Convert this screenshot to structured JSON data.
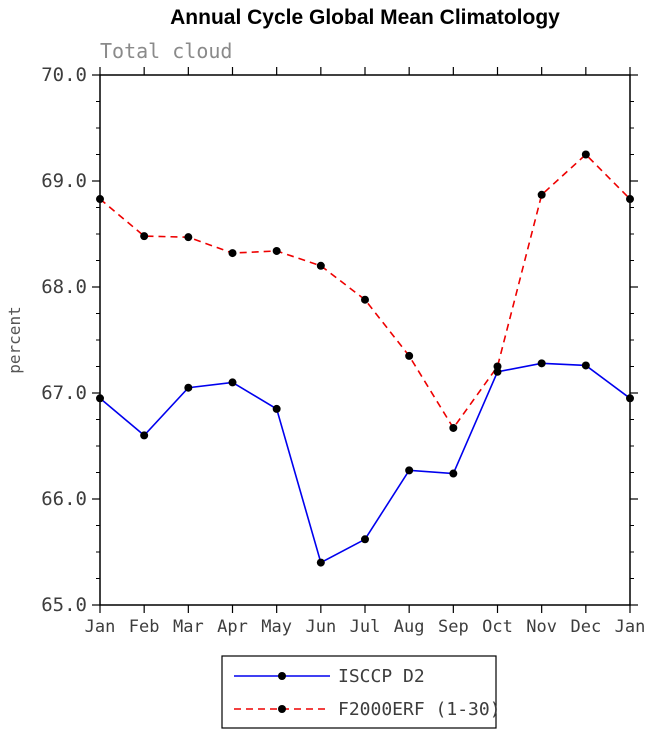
{
  "chart_data": {
    "type": "line",
    "title": "Annual Cycle Global Mean Climatology",
    "subtitle": "Total cloud",
    "ylabel": "percent",
    "ylim": [
      65.0,
      70.0
    ],
    "ytick_step": 1.0,
    "ytick_minor_step": 0.25,
    "ytick_labels": [
      "65.0",
      "66.0",
      "67.0",
      "68.0",
      "69.0",
      "70.0"
    ],
    "categories": [
      "Jan",
      "Feb",
      "Mar",
      "Apr",
      "May",
      "Jun",
      "Jul",
      "Aug",
      "Sep",
      "Oct",
      "Nov",
      "Dec",
      "Jan"
    ],
    "series": [
      {
        "name": "ISCCP D2",
        "color": "#0000ee",
        "style": "solid",
        "values": [
          66.95,
          66.6,
          67.05,
          67.1,
          66.85,
          65.4,
          65.62,
          66.27,
          66.24,
          67.2,
          67.28,
          67.26,
          66.95
        ]
      },
      {
        "name": "F2000ERF (1-30)",
        "color": "#ee0000",
        "style": "dashed",
        "values": [
          68.83,
          68.48,
          68.47,
          68.32,
          68.34,
          68.2,
          67.88,
          67.35,
          66.67,
          67.25,
          68.87,
          69.25,
          68.83
        ]
      }
    ],
    "marker_color": "#000000",
    "legend_position": "bottom",
    "grid": false
  }
}
